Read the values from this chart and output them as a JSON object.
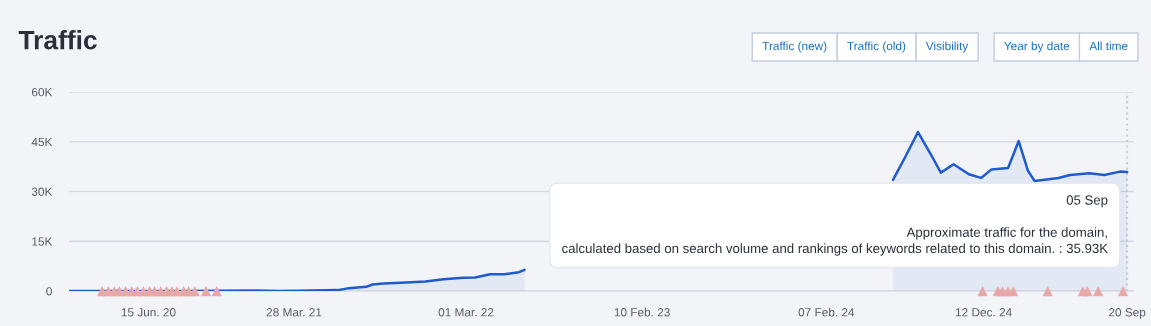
{
  "chart_data": {
    "type": "area",
    "title": "Traffic",
    "annotations": [
      "Traffic (new)",
      "Traffic (old)",
      "Visibility",
      "Year by date",
      "All time",
      "05 Sep\n\nApproximate traffic for the domain,\ncalculated based on search volume and rankings of keywords related to this domain. : 35.93K"
    ],
    "series": [
      {
        "color": "#1f5bd0",
        "x": [
          "2020-01-11",
          "2020-08-23",
          "2021-01-10",
          "2021-02-27",
          "2021-04-03",
          "2021-06-22",
          "2021-07-14",
          "2021-08-17",
          "2021-08-29",
          "2021-09-20",
          "2021-11-03",
          "2021-12-11",
          "2022-01-16",
          "2022-02-23",
          "2022-03-19",
          "2022-04-17",
          "2022-05-15",
          "2022-06-13",
          "2022-06-24",
          "2023-06-01",
          "2024-06-17",
          "2024-07-12",
          "2024-08-05",
          "2024-08-30",
          "2024-09-19",
          "2024-10-14",
          "2024-11-13",
          "2024-12-07",
          "2024-12-27",
          "2025-01-29",
          "2025-02-19",
          "2025-03-09",
          "2025-03-22",
          "2025-05-08",
          "2025-05-31",
          "2025-07-08",
          "2025-08-06",
          "2025-09-06",
          "2025-09-20"
        ],
        "values": [
          0,
          0,
          200,
          0,
          100,
          300,
          900,
          1300,
          2000,
          2300,
          2600,
          2900,
          3600,
          4000,
          4100,
          5100,
          5100,
          5700,
          6400,
          null,
          33500,
          40700,
          47900,
          41300,
          35700,
          38200,
          35200,
          34100,
          36600,
          37100,
          45200,
          36300,
          33200,
          34100,
          35000,
          35500,
          35000,
          36000,
          35900
        ]
      },
      {
        "type": "scatter",
        "color": "#e8a8a8",
        "marker": "triangle",
        "x": [
          "2020-03-16",
          "2020-03-28",
          "2020-04-09",
          "2020-04-19",
          "2020-05-01",
          "2020-05-13",
          "2020-05-24",
          "2020-06-05",
          "2020-06-17",
          "2020-06-27",
          "2020-07-09",
          "2020-07-21",
          "2020-07-31",
          "2020-08-10",
          "2020-08-23",
          "2020-09-02",
          "2020-09-14",
          "2020-10-06",
          "2020-10-27",
          "2024-12-10",
          "2025-01-09",
          "2025-01-18",
          "2025-01-29",
          "2025-02-08",
          "2025-04-17",
          "2025-06-25",
          "2025-07-04",
          "2025-07-25",
          "2025-09-12"
        ],
        "values": [
          0,
          0,
          0,
          0,
          0,
          0,
          0,
          0,
          0,
          0,
          0,
          0,
          0,
          0,
          0,
          0,
          0,
          0,
          0,
          0,
          0,
          0,
          0,
          0,
          0,
          0,
          0,
          0,
          0
        ]
      }
    ],
    "xlim": [
      "2020-01-11",
      "2025-10-03"
    ],
    "xticks": [
      {
        "value": "2020-06-15",
        "label": "15 Jun. 20"
      },
      {
        "value": "2021-03-28",
        "label": "28 Mar. 21"
      },
      {
        "value": "2022-03-01",
        "label": "01 Mar. 22"
      },
      {
        "value": "2023-02-10",
        "label": "10 Feb. 23"
      },
      {
        "value": "2024-02-07",
        "label": "07 Feb. 24"
      },
      {
        "value": "2024-12-12",
        "label": "12 Dec. 24"
      },
      {
        "value": "2025-09-20",
        "label": "20 Sep"
      }
    ],
    "ylim": [
      0,
      60000
    ],
    "yticks": [
      {
        "value": 0,
        "label": "0"
      },
      {
        "value": 15000,
        "label": "15K"
      },
      {
        "value": 30000,
        "label": "30K"
      },
      {
        "value": 45000,
        "label": "45K"
      },
      {
        "value": 60000,
        "label": "60K"
      }
    ],
    "ref_lines": [
      {
        "axis": "x",
        "value": "2025-09-20",
        "label": null,
        "color": "#c8ccd6",
        "line_style": "dotted"
      }
    ],
    "grid": "y",
    "legend": false
  }
}
